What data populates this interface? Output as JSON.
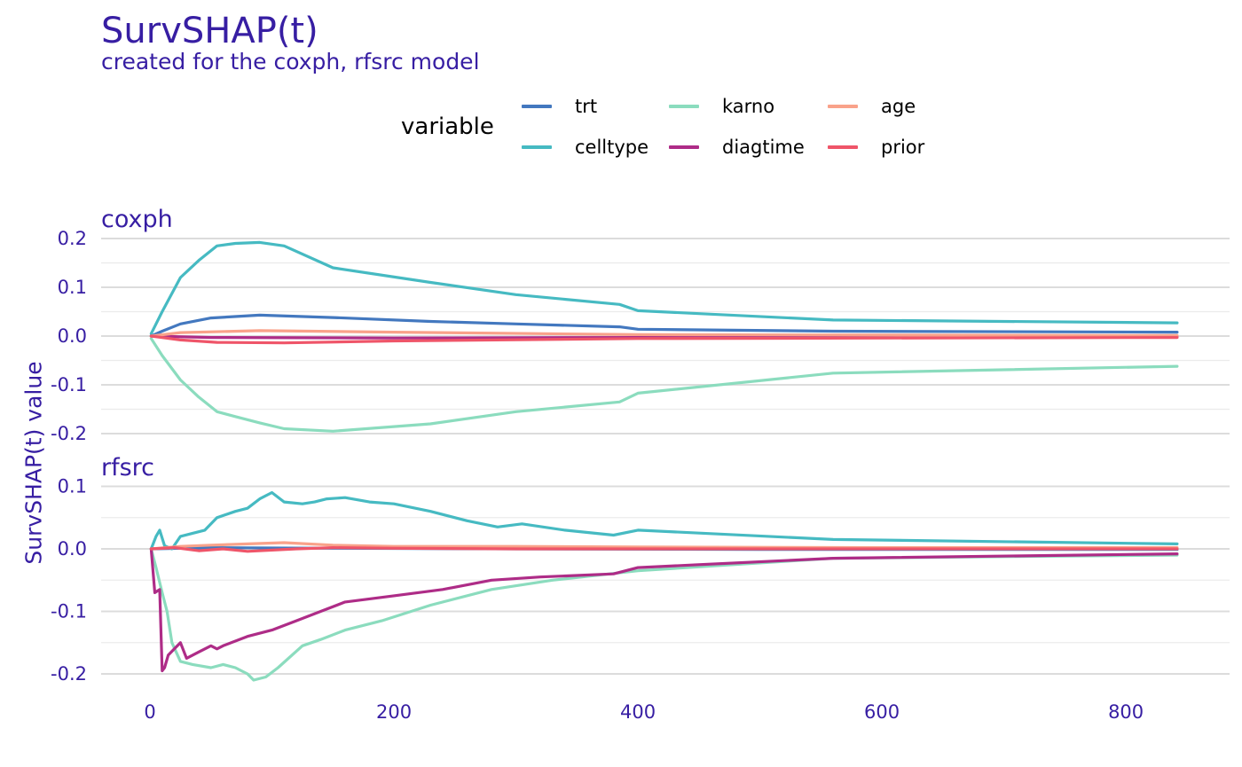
{
  "title": "SurvSHAP(t)",
  "subtitle": "created for the coxph, rfsrc model",
  "legend": {
    "title": "variable",
    "items": [
      {
        "label": "trt",
        "color": "#4378bf"
      },
      {
        "label": "celltype",
        "color": "#46bac2"
      },
      {
        "label": "karno",
        "color": "#8bdcbe"
      },
      {
        "label": "diagtime",
        "color": "#ae2c87"
      },
      {
        "label": "age",
        "color": "#f9a28a"
      },
      {
        "label": "prior",
        "color": "#ef5569"
      }
    ]
  },
  "ylabel": "SurvSHAP(t) value",
  "chart_data": {
    "type": "line",
    "x_ticks": [
      0,
      200,
      400,
      600,
      800
    ],
    "xlim": [
      -40,
      885
    ],
    "panels": [
      {
        "name": "coxph",
        "ylim": [
          -0.22,
          0.22
        ],
        "y_ticks": [
          0.2,
          0.1,
          0.0,
          -0.1,
          -0.2
        ],
        "y_tick_labels": [
          "0.2",
          "0.1",
          "0.0",
          "-0.1",
          "-0.2"
        ],
        "series": [
          {
            "name": "trt",
            "x": [
              1,
              10,
              25,
              50,
              90,
              150,
              230,
              300,
              385,
              400,
              560,
              842
            ],
            "y": [
              0,
              0.01,
              0.025,
              0.037,
              0.043,
              0.038,
              0.03,
              0.025,
              0.019,
              0.014,
              0.01,
              0.008
            ]
          },
          {
            "name": "celltype",
            "x": [
              1,
              10,
              25,
              40,
              55,
              70,
              90,
              110,
              150,
              230,
              300,
              385,
              400,
              560,
              842
            ],
            "y": [
              0.005,
              0.05,
              0.12,
              0.155,
              0.185,
              0.19,
              0.192,
              0.185,
              0.14,
              0.11,
              0.085,
              0.065,
              0.052,
              0.033,
              0.027
            ]
          },
          {
            "name": "karno",
            "x": [
              1,
              10,
              25,
              40,
              55,
              70,
              90,
              110,
              150,
              230,
              300,
              385,
              400,
              560,
              842
            ],
            "y": [
              -0.005,
              -0.04,
              -0.09,
              -0.125,
              -0.155,
              -0.165,
              -0.178,
              -0.19,
              -0.195,
              -0.18,
              -0.155,
              -0.135,
              -0.117,
              -0.076,
              -0.062
            ]
          },
          {
            "name": "diagtime",
            "x": [
              1,
              50,
              200,
              400,
              842
            ],
            "y": [
              0,
              -0.003,
              -0.004,
              -0.003,
              -0.002
            ]
          },
          {
            "name": "age",
            "x": [
              1,
              25,
              90,
              200,
              400,
              842
            ],
            "y": [
              0,
              0.007,
              0.011,
              0.008,
              0.003,
              0.001
            ]
          },
          {
            "name": "prior",
            "x": [
              1,
              25,
              55,
              110,
              200,
              400,
              842
            ],
            "y": [
              0,
              -0.008,
              -0.013,
              -0.014,
              -0.01,
              -0.005,
              -0.003
            ]
          }
        ]
      },
      {
        "name": "rfsrc",
        "ylim": [
          -0.22,
          0.12
        ],
        "y_ticks": [
          0.1,
          0.0,
          -0.1,
          -0.2
        ],
        "y_tick_labels": [
          "0.1",
          "0.0",
          "-0.1",
          "-0.2"
        ],
        "series": [
          {
            "name": "trt",
            "x": [
              1,
              50,
              150,
              300,
              500,
              842
            ],
            "y": [
              0,
              0.002,
              0.001,
              0.0,
              -0.001,
              -0.001
            ]
          },
          {
            "name": "celltype",
            "x": [
              1,
              5,
              8,
              12,
              18,
              25,
              35,
              45,
              55,
              70,
              80,
              90,
              100,
              110,
              125,
              135,
              145,
              160,
              180,
              200,
              230,
              260,
              285,
              305,
              340,
              380,
              400,
              560,
              842
            ],
            "y": [
              0,
              0.02,
              0.03,
              0.005,
              0.0,
              0.02,
              0.025,
              0.03,
              0.05,
              0.06,
              0.065,
              0.08,
              0.09,
              0.075,
              0.072,
              0.075,
              0.08,
              0.082,
              0.075,
              0.072,
              0.06,
              0.045,
              0.035,
              0.04,
              0.03,
              0.022,
              0.03,
              0.015,
              0.008
            ]
          },
          {
            "name": "karno",
            "x": [
              1,
              5,
              10,
              14,
              18,
              25,
              35,
              50,
              60,
              70,
              80,
              85,
              95,
              105,
              125,
              140,
              160,
              190,
              230,
              280,
              330,
              400,
              560,
              842
            ],
            "y": [
              0,
              -0.03,
              -0.07,
              -0.1,
              -0.15,
              -0.18,
              -0.185,
              -0.19,
              -0.185,
              -0.19,
              -0.2,
              -0.21,
              -0.205,
              -0.19,
              -0.155,
              -0.145,
              -0.13,
              -0.115,
              -0.09,
              -0.065,
              -0.05,
              -0.035,
              -0.015,
              -0.01
            ]
          },
          {
            "name": "diagtime",
            "x": [
              1,
              4,
              8,
              10,
              12,
              15,
              20,
              25,
              30,
              40,
              50,
              55,
              60,
              80,
              100,
              120,
              140,
              160,
              200,
              240,
              280,
              320,
              380,
              400,
              560,
              842
            ],
            "y": [
              0,
              -0.07,
              -0.065,
              -0.195,
              -0.19,
              -0.17,
              -0.16,
              -0.15,
              -0.175,
              -0.165,
              -0.155,
              -0.16,
              -0.155,
              -0.14,
              -0.13,
              -0.115,
              -0.1,
              -0.085,
              -0.075,
              -0.065,
              -0.05,
              -0.045,
              -0.04,
              -0.03,
              -0.015,
              -0.008
            ]
          },
          {
            "name": "age",
            "x": [
              1,
              25,
              50,
              80,
              110,
              150,
              200,
              300,
              400,
              600,
              842
            ],
            "y": [
              0,
              0.004,
              0.006,
              0.008,
              0.01,
              0.006,
              0.004,
              0.004,
              0.003,
              0.002,
              0.002
            ]
          },
          {
            "name": "prior",
            "x": [
              1,
              20,
              40,
              60,
              80,
              100,
              120,
              150,
              200,
              300,
              400,
              842
            ],
            "y": [
              0,
              0.002,
              -0.003,
              0.0,
              -0.004,
              -0.002,
              0.0,
              0.002,
              0.001,
              0.0,
              0.0,
              0.0
            ]
          }
        ]
      }
    ]
  }
}
